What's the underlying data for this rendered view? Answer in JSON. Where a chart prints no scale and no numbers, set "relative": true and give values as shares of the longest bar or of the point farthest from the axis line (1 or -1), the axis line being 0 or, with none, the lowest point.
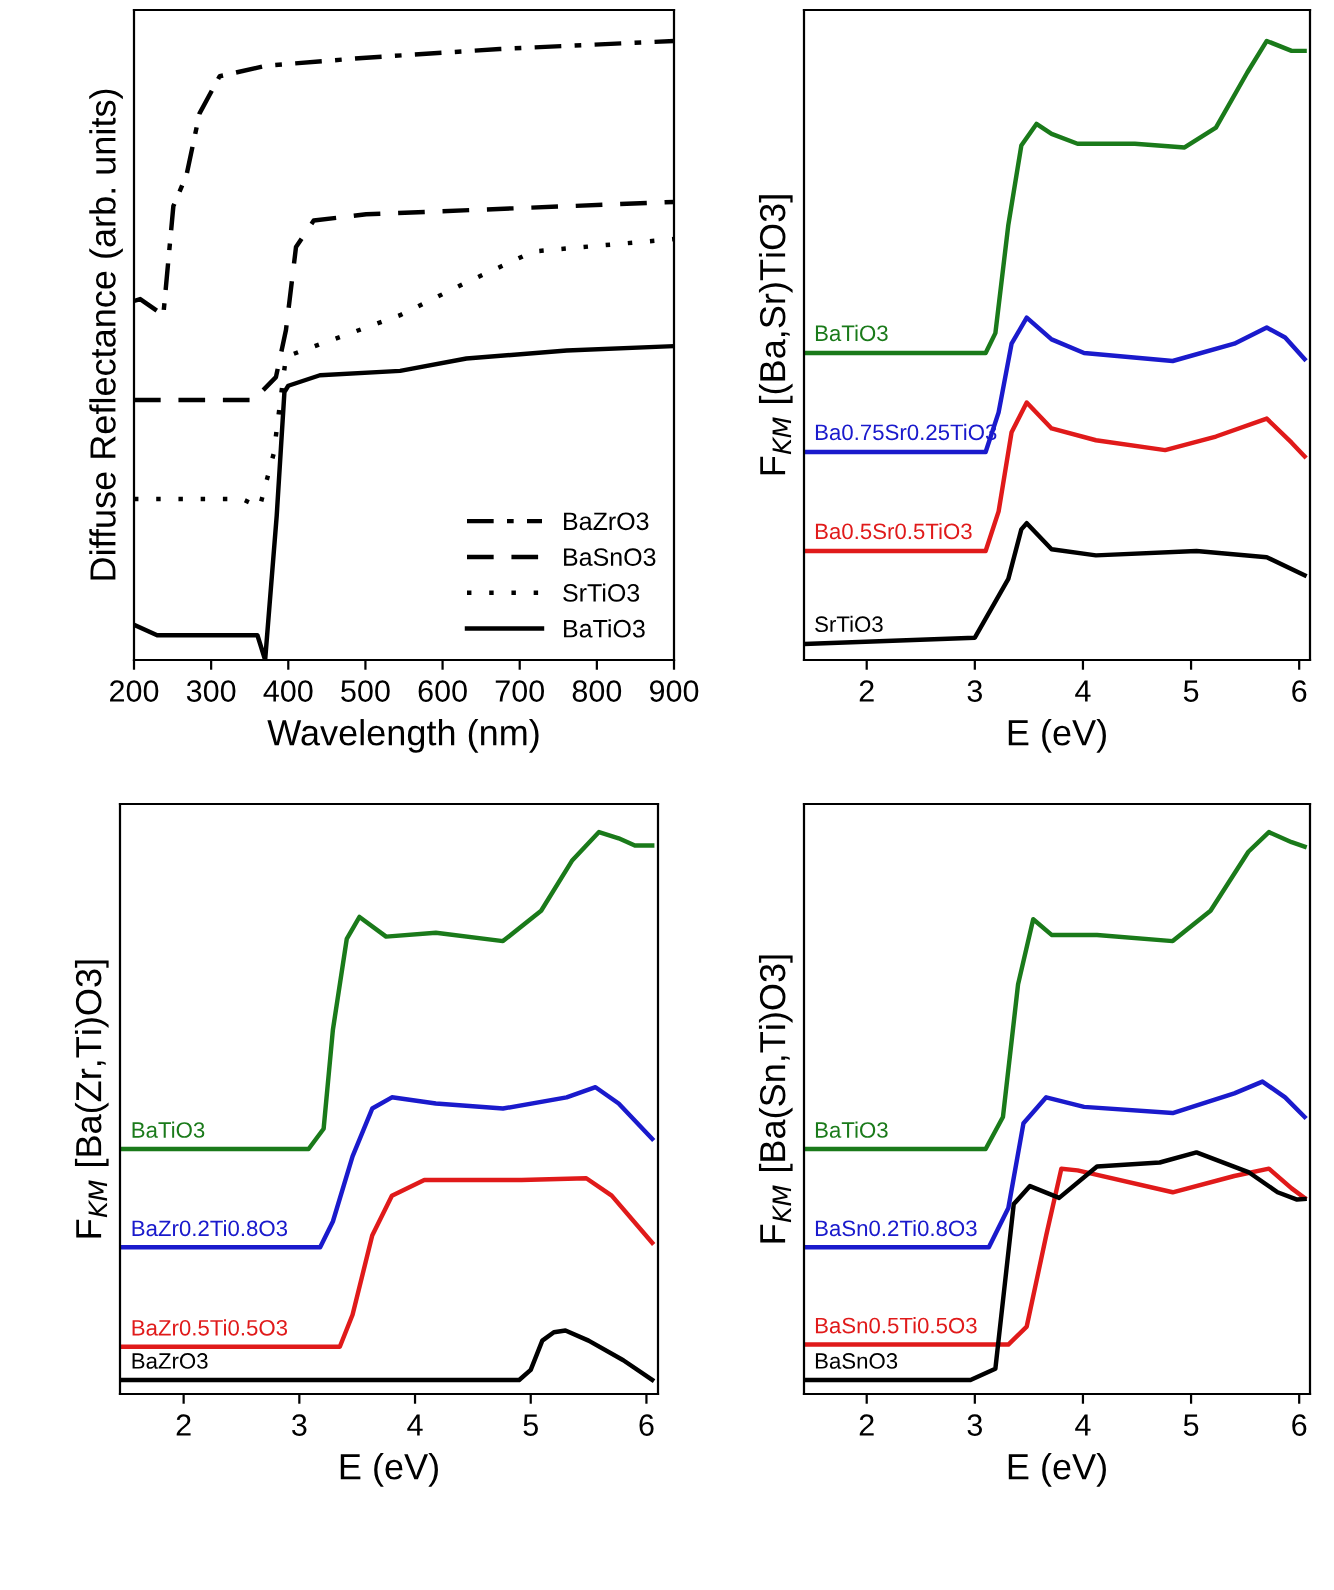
{
  "chart_data": [
    {
      "type": "line",
      "xlabel": "Wavelength (nm)",
      "ylabel": "Diffuse Reflectance (arb. units)",
      "relative": true,
      "xlim": [
        200,
        900
      ],
      "xticks": [
        200,
        300,
        400,
        500,
        600,
        700,
        800,
        900
      ],
      "tick_labels": "x",
      "legend": "bottom right",
      "grid": false,
      "series": [
        {
          "name": "BaZrO3",
          "color": "#000000",
          "line_style": "dashdot",
          "x": [
            200,
            208,
            238,
            251,
            268,
            285,
            311,
            371,
            501,
            674,
            900
          ],
          "values": [
            0.58,
            0.583,
            0.557,
            0.733,
            0.783,
            0.883,
            0.943,
            0.96,
            0.973,
            0.987,
            1.0
          ]
        },
        {
          "name": "BaSnO3",
          "color": "#000000",
          "line_style": "dashed",
          "x": [
            200,
            355,
            384,
            397,
            410,
            433,
            501,
            900
          ],
          "values": [
            0.42,
            0.42,
            0.457,
            0.533,
            0.667,
            0.71,
            0.72,
            0.74
          ]
        },
        {
          "name": "SrTiO3",
          "color": "#000000",
          "line_style": "dotted",
          "x": [
            200,
            340,
            363,
            381,
            397,
            441,
            545,
            631,
            718,
            900
          ],
          "values": [
            0.26,
            0.26,
            0.247,
            0.333,
            0.49,
            0.51,
            0.557,
            0.61,
            0.66,
            0.68
          ]
        },
        {
          "name": "BaTiO3",
          "color": "#000000",
          "line_style": "solid",
          "x": [
            200,
            230,
            360,
            370,
            385,
            395,
            400,
            441,
            545,
            631,
            761,
            900
          ],
          "values": [
            0.057,
            0.04,
            0.04,
            0.0,
            0.233,
            0.433,
            0.443,
            0.46,
            0.467,
            0.487,
            0.5,
            0.507
          ]
        }
      ]
    },
    {
      "type": "line",
      "xlabel": "E (eV)",
      "ylabel": "F$_{KM}$ [(Ba,Sr)TiO3]",
      "relative": true,
      "xlim": [
        1.42,
        6.1
      ],
      "xticks": [
        2,
        3,
        4,
        5,
        6
      ],
      "tick_labels": "x",
      "grid": false,
      "series": [
        {
          "name": "BaTiO3",
          "color": "#1a7a1a",
          "x": [
            1.42,
            3.1,
            3.19,
            3.31,
            3.43,
            3.57,
            3.71,
            3.95,
            4.48,
            4.94,
            5.23,
            5.52,
            5.7,
            5.93,
            6.05
          ],
          "values": [
            0.496,
            0.496,
            0.528,
            0.703,
            0.831,
            0.866,
            0.85,
            0.834,
            0.834,
            0.828,
            0.86,
            0.949,
            1.0,
            0.984,
            0.984
          ]
        },
        {
          "name": "Ba0.75Sr0.25TiO3",
          "color": "#1a1acc",
          "x": [
            1.42,
            3.1,
            3.22,
            3.34,
            3.48,
            3.71,
            4.01,
            4.83,
            5.4,
            5.7,
            5.87,
            6.05
          ],
          "values": [
            0.336,
            0.336,
            0.4,
            0.511,
            0.553,
            0.518,
            0.496,
            0.483,
            0.511,
            0.537,
            0.521,
            0.486
          ]
        },
        {
          "name": "Ba0.5Sr0.5TiO3",
          "color": "#e01a1a",
          "x": [
            1.42,
            3.1,
            3.22,
            3.34,
            3.48,
            3.71,
            4.12,
            4.76,
            5.23,
            5.7,
            5.93,
            6.05
          ],
          "values": [
            0.176,
            0.176,
            0.24,
            0.368,
            0.416,
            0.374,
            0.355,
            0.339,
            0.361,
            0.39,
            0.351,
            0.329
          ]
        },
        {
          "name": "SrTiO3",
          "color": "#000000",
          "x": [
            1.42,
            3.0,
            3.31,
            3.43,
            3.48,
            3.71,
            4.12,
            5.05,
            5.7,
            6.05
          ],
          "values": [
            0.026,
            0.036,
            0.131,
            0.211,
            0.221,
            0.179,
            0.169,
            0.176,
            0.166,
            0.137
          ]
        }
      ]
    },
    {
      "type": "line",
      "xlabel": "E (eV)",
      "ylabel": "F$_{KM}$ [Ba(Zr,Ti)O3]",
      "relative": true,
      "xlim": [
        1.45,
        6.1
      ],
      "xticks": [
        2,
        3,
        4,
        5,
        6
      ],
      "tick_labels": "x",
      "grid": false,
      "series": [
        {
          "name": "BaTiO3",
          "color": "#1a7a1a",
          "x": [
            1.45,
            3.08,
            3.21,
            3.29,
            3.41,
            3.52,
            3.75,
            4.18,
            4.76,
            5.09,
            5.36,
            5.59,
            5.76,
            5.9,
            6.05
          ],
          "values": [
            0.436,
            0.436,
            0.472,
            0.648,
            0.81,
            0.849,
            0.814,
            0.821,
            0.806,
            0.86,
            0.95,
            1.0,
            0.989,
            0.976,
            0.976
          ]
        },
        {
          "name": "BaZr0.2Ti0.8O3",
          "color": "#1a1acc",
          "x": [
            1.45,
            3.18,
            3.29,
            3.46,
            3.63,
            3.8,
            4.18,
            4.76,
            5.31,
            5.56,
            5.76,
            6.05
          ],
          "values": [
            0.261,
            0.261,
            0.307,
            0.423,
            0.508,
            0.528,
            0.517,
            0.508,
            0.528,
            0.546,
            0.517,
            0.454
          ]
        },
        {
          "name": "BaZr0.5Ti0.5O3",
          "color": "#e01a1a",
          "x": [
            1.45,
            3.35,
            3.46,
            3.63,
            3.8,
            4.08,
            4.92,
            5.48,
            5.7,
            6.05
          ],
          "values": [
            0.084,
            0.084,
            0.141,
            0.282,
            0.353,
            0.381,
            0.381,
            0.384,
            0.353,
            0.269
          ]
        },
        {
          "name": "BaZrO3",
          "color": "#000000",
          "x": [
            1.45,
            4.9,
            5.0,
            5.1,
            5.2,
            5.3,
            5.5,
            5.8,
            6.05
          ],
          "values": [
            0.025,
            0.025,
            0.043,
            0.095,
            0.11,
            0.113,
            0.095,
            0.06,
            0.025
          ]
        }
      ]
    },
    {
      "type": "line",
      "xlabel": "E (eV)",
      "ylabel": "F$_{KM}$ [Ba(Sn,Ti)O3]",
      "relative": true,
      "xlim": [
        1.42,
        6.1
      ],
      "xticks": [
        2,
        3,
        4,
        5,
        6
      ],
      "tick_labels": "x",
      "grid": false,
      "series": [
        {
          "name": "BaTiO3",
          "color": "#1a7a1a",
          "x": [
            1.42,
            3.1,
            3.26,
            3.4,
            3.54,
            3.71,
            4.13,
            4.83,
            5.18,
            5.53,
            5.72,
            5.93,
            6.05
          ],
          "values": [
            0.436,
            0.436,
            0.493,
            0.729,
            0.845,
            0.817,
            0.817,
            0.806,
            0.86,
            0.965,
            1.0,
            0.982,
            0.974
          ]
        },
        {
          "name": "BaSn0.2Ti0.8O3",
          "color": "#1a1acc",
          "x": [
            1.42,
            3.13,
            3.31,
            3.45,
            3.66,
            4.01,
            4.83,
            5.4,
            5.66,
            5.87,
            6.05
          ],
          "values": [
            0.261,
            0.261,
            0.331,
            0.482,
            0.528,
            0.511,
            0.5,
            0.535,
            0.556,
            0.528,
            0.493
          ]
        },
        {
          "name": "BaSn0.5Ti0.5O3",
          "color": "#e01a1a",
          "x": [
            1.42,
            3.31,
            3.48,
            3.66,
            3.8,
            3.95,
            4.83,
            5.4,
            5.72,
            5.93,
            6.05
          ],
          "values": [
            0.088,
            0.088,
            0.12,
            0.282,
            0.401,
            0.398,
            0.359,
            0.388,
            0.401,
            0.366,
            0.349
          ]
        },
        {
          "name": "BaSnO3",
          "color": "#000000",
          "x": [
            1.42,
            2.96,
            3.19,
            3.36,
            3.51,
            3.78,
            4.13,
            4.71,
            5.05,
            5.53,
            5.8,
            5.98,
            6.05
          ],
          "values": [
            0.025,
            0.025,
            0.045,
            0.338,
            0.37,
            0.349,
            0.405,
            0.412,
            0.43,
            0.395,
            0.359,
            0.346,
            0.347
          ]
        }
      ]
    }
  ]
}
